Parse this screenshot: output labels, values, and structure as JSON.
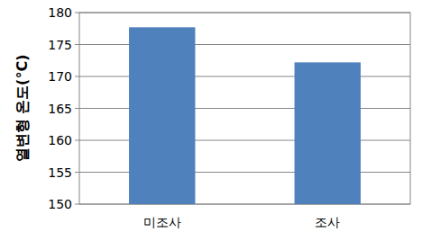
{
  "chart_data": {
    "type": "bar",
    "y_label": "열변형 온도(°C)",
    "categories": [
      "미조사",
      "조사"
    ],
    "values": [
      177.7,
      172.2
    ],
    "color": "#4f81bd",
    "ylim": [
      150,
      180
    ],
    "yticks": [
      150,
      155,
      160,
      165,
      170,
      175,
      180
    ],
    "grid": true
  }
}
